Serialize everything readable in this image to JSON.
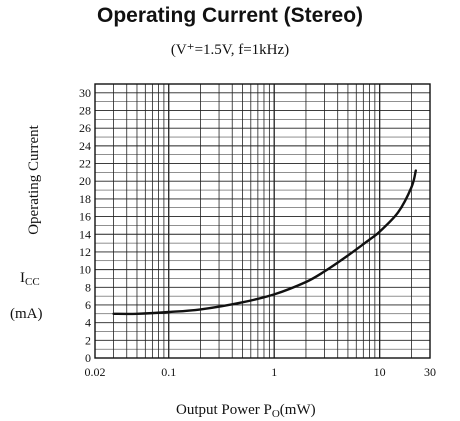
{
  "chart_data": {
    "type": "line",
    "title": "Operating Current (Stereo)",
    "subtitle": "(V⁺=1.5V,  f=1kHz)",
    "xlabel": "Output Power P",
    "xlabel_sub": "O",
    "xlabel_unit": "(mW)",
    "ylabel": "Operating Current",
    "ylabel_symbol": "I",
    "ylabel_symbol_sub": "CC",
    "ylabel_unit": "(mA)",
    "xscale": "log",
    "xlim": [
      0.02,
      30
    ],
    "ylim": [
      0,
      31
    ],
    "grid": true,
    "x_ticks": [
      {
        "value": 0.02,
        "label": "0.02"
      },
      {
        "value": 0.1,
        "label": "0.1"
      },
      {
        "value": 1,
        "label": "1"
      },
      {
        "value": 10,
        "label": "10"
      },
      {
        "value": 30,
        "label": "30"
      }
    ],
    "y_ticks": [
      0,
      2,
      4,
      6,
      8,
      10,
      12,
      14,
      16,
      18,
      20,
      22,
      24,
      26,
      28,
      30
    ],
    "series": [
      {
        "x": [
          0.03,
          0.05,
          0.1,
          0.2,
          0.5,
          1,
          2,
          3,
          5,
          8,
          10,
          15,
          20,
          22
        ],
        "y": [
          5.0,
          5.0,
          5.2,
          5.5,
          6.3,
          7.2,
          8.6,
          9.8,
          11.6,
          13.4,
          14.3,
          16.5,
          19.3,
          21.2
        ]
      }
    ]
  }
}
